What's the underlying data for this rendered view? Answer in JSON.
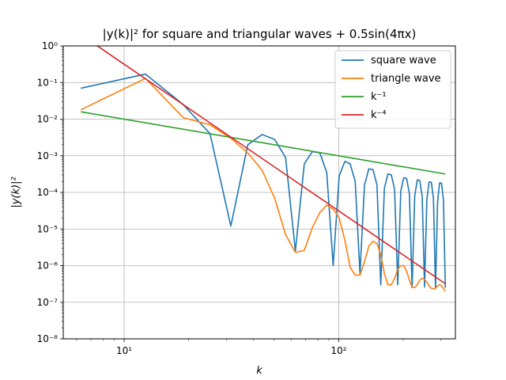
{
  "chart_data": {
    "type": "line",
    "title": "|y(k)|² for square and triangular waves + 0.5sin(4πx)",
    "xlabel": "k",
    "ylabel": "|y(k)|²",
    "xscale": "log",
    "yscale": "log",
    "xlim": [
      5.2,
      350
    ],
    "ylim": [
      1e-08,
      1
    ],
    "x_ticks": [
      10,
      100
    ],
    "x_tick_labels": [
      "10¹",
      "10²"
    ],
    "y_ticks": [
      1e-08,
      1e-07,
      1e-06,
      1e-05,
      0.0001,
      0.001,
      0.01,
      0.1,
      1
    ],
    "y_tick_labels": [
      "10⁻⁸",
      "10⁻⁷",
      "10⁻⁶",
      "10⁻⁵",
      "10⁻⁴",
      "10⁻³",
      "10⁻²",
      "10⁻¹",
      "10⁰"
    ],
    "grid": true,
    "legend_position": "upper right",
    "series": [
      {
        "name": "square wave",
        "color": "#1f77b4",
        "x": [
          6.28,
          12.57,
          18.85,
          25.13,
          31.42,
          37.7,
          43.98,
          50.27,
          56.55,
          62.83,
          69.12,
          75.4,
          81.68,
          87.96,
          94.25,
          100.53,
          106.81,
          113.1,
          119.38,
          125.66,
          131.95,
          138.23,
          144.51,
          150.8,
          157.08,
          163.36,
          169.65,
          175.93,
          182.21,
          188.5,
          194.78,
          201.06,
          207.35,
          213.63,
          219.91,
          226.19,
          232.48,
          238.76,
          245.04,
          251.33,
          257.61,
          263.89,
          270.18,
          276.46,
          282.74,
          289.03,
          295.31,
          301.59,
          307.88,
          314.16
        ],
        "y": [
          0.07,
          0.17,
          0.025,
          0.004,
          1.2e-05,
          0.002,
          0.0038,
          0.0028,
          0.0009,
          2.5e-06,
          0.0006,
          0.0013,
          0.0012,
          0.00035,
          1e-06,
          0.00028,
          0.0007,
          0.0006,
          0.0002,
          6e-07,
          0.00016,
          0.00044,
          0.00042,
          0.00016,
          3e-07,
          0.00013,
          0.00032,
          0.0003,
          0.00012,
          3e-07,
          0.00011,
          0.00025,
          0.00024,
          9e-05,
          2.5e-07,
          8e-05,
          0.00022,
          0.00021,
          8e-05,
          2.6e-07,
          6.5e-05,
          0.00019,
          0.00019,
          7e-05,
          2.4e-07,
          5.5e-05,
          0.00018,
          0.00018,
          6e-05,
          2.5e-07
        ]
      },
      {
        "name": "triangle wave",
        "color": "#ff7f0e",
        "x": [
          6.28,
          12.57,
          18.85,
          25.13,
          31.42,
          37.7,
          43.98,
          50.27,
          56.55,
          62.83,
          69.12,
          75.4,
          81.68,
          87.96,
          94.25,
          100.53,
          106.81,
          113.1,
          119.38,
          125.66,
          131.95,
          138.23,
          144.51,
          150.8,
          157.08,
          163.36,
          169.65,
          175.93,
          182.21,
          188.5,
          194.78,
          201.06,
          207.35,
          213.63,
          219.91,
          226.19,
          232.48,
          238.76,
          245.04,
          251.33,
          257.61,
          263.89,
          270.18,
          276.46,
          282.74,
          289.03,
          295.31,
          301.59,
          307.88,
          314.16
        ],
        "y": [
          0.018,
          0.13,
          0.011,
          0.007,
          0.003,
          0.0012,
          0.0004,
          7e-05,
          7e-06,
          2.3e-06,
          2.6e-06,
          1.1e-05,
          2.8e-05,
          4.5e-05,
          3.5e-05,
          2e-05,
          5e-06,
          9e-07,
          5.5e-07,
          5.5e-07,
          1.3e-06,
          3.4e-06,
          4.6e-06,
          4e-06,
          2e-06,
          6e-07,
          3e-07,
          3e-07,
          4.5e-07,
          8e-07,
          1e-06,
          1e-06,
          7e-07,
          4e-07,
          2.6e-07,
          2.5e-07,
          3e-07,
          4e-07,
          4.5e-07,
          4.2e-07,
          3.5e-07,
          2.8e-07,
          2.4e-07,
          2.3e-07,
          2.4e-07,
          2.8e-07,
          3e-07,
          2.8e-07,
          2.4e-07,
          2e-07
        ]
      },
      {
        "name": "k⁻¹",
        "color": "#2ca02c",
        "x": [
          6.28,
          314.16
        ],
        "y": [
          0.0159,
          0.000318
        ]
      },
      {
        "name": "k⁻⁴",
        "color": "#d62728",
        "x": [
          7.5,
          314.16
        ],
        "y": [
          1.0,
          3.2e-07
        ]
      }
    ]
  }
}
